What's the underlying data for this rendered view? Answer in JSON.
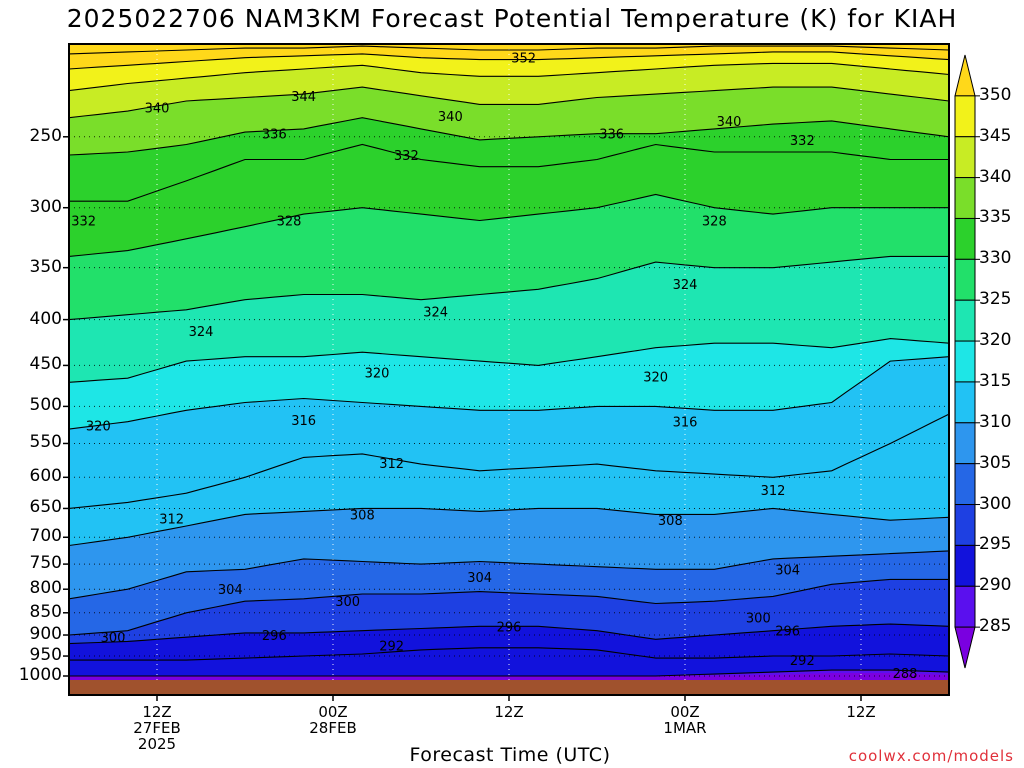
{
  "title": "2025022706 NAM3KM Forecast Potential Temperature (K) for KIAH",
  "credit": "coolwx.com/models",
  "chart_data": {
    "type": "heatmap",
    "subtype": "time-height cross-section, filled contours with contour lines",
    "title": "2025022706 NAM3KM Forecast Potential Temperature (K) for KIAH",
    "xlabel": "Forecast Time (UTC)",
    "ylabel": "",
    "y_scale": "log (pressure, hPa)",
    "ylim": [
      1000,
      200
    ],
    "x_start_hours": 0,
    "x_end_hours": 60,
    "x_ticks": [
      {
        "hour": 6,
        "lines": [
          "12Z",
          "27FEB",
          "2025"
        ]
      },
      {
        "hour": 18,
        "lines": [
          "00Z",
          "28FEB"
        ]
      },
      {
        "hour": 30,
        "lines": [
          "12Z"
        ]
      },
      {
        "hour": 42,
        "lines": [
          "00Z",
          "1MAR"
        ]
      },
      {
        "hour": 54,
        "lines": [
          "12Z"
        ]
      }
    ],
    "y_ticks": [
      250,
      300,
      350,
      400,
      450,
      500,
      550,
      600,
      650,
      700,
      750,
      800,
      850,
      900,
      950,
      1000
    ],
    "grid": true,
    "colorbar": {
      "levels": [
        285,
        290,
        295,
        300,
        305,
        310,
        315,
        320,
        325,
        330,
        335,
        340,
        345,
        350
      ],
      "labels": [
        "350",
        "345",
        "340",
        "335",
        "330",
        "325",
        "320",
        "315",
        "310",
        "305",
        "300",
        "295",
        "290",
        "285"
      ],
      "colors": [
        "#7a00e0",
        "#5a10ee",
        "#1212dc",
        "#1e40e2",
        "#2567e6",
        "#2e96ee",
        "#22c2f4",
        "#1ee6e6",
        "#1ee6b2",
        "#22e06a",
        "#2cd12c",
        "#7ade2a",
        "#c8ec24",
        "#f2f21a",
        "#ffd81a"
      ]
    },
    "contour_levels": [
      288,
      292,
      296,
      300,
      304,
      308,
      312,
      316,
      320,
      324,
      328,
      332,
      336,
      340,
      344,
      348,
      352
    ],
    "x_hours": [
      0,
      4,
      8,
      12,
      16,
      20,
      24,
      28,
      32,
      36,
      40,
      44,
      48,
      52,
      56,
      60
    ],
    "series": [
      {
        "name": "288",
        "values": [
          1000,
          1000,
          1000,
          1000,
          1000,
          1000,
          1000,
          1000,
          1000,
          1000,
          1000,
          995,
          990,
          985,
          985,
          990
        ]
      },
      {
        "name": "292",
        "values": [
          960,
          960,
          960,
          955,
          950,
          945,
          935,
          930,
          930,
          935,
          955,
          955,
          950,
          950,
          945,
          950
        ]
      },
      {
        "name": "296",
        "values": [
          920,
          915,
          905,
          895,
          895,
          890,
          885,
          880,
          880,
          890,
          910,
          900,
          890,
          880,
          875,
          880
        ]
      },
      {
        "name": "300",
        "values": [
          900,
          890,
          850,
          825,
          820,
          810,
          810,
          805,
          810,
          815,
          830,
          825,
          815,
          790,
          780,
          780
        ]
      },
      {
        "name": "304",
        "values": [
          820,
          800,
          765,
          760,
          740,
          745,
          750,
          745,
          750,
          755,
          760,
          760,
          740,
          735,
          730,
          725
        ]
      },
      {
        "name": "308",
        "values": [
          715,
          700,
          680,
          660,
          655,
          650,
          650,
          655,
          650,
          650,
          660,
          660,
          650,
          660,
          670,
          665
        ]
      },
      {
        "name": "312",
        "values": [
          650,
          640,
          625,
          600,
          570,
          565,
          580,
          590,
          585,
          580,
          590,
          595,
          600,
          590,
          550,
          510
        ]
      },
      {
        "name": "316",
        "values": [
          530,
          520,
          505,
          495,
          490,
          495,
          500,
          505,
          505,
          500,
          500,
          505,
          505,
          495,
          445,
          440
        ]
      },
      {
        "name": "320",
        "values": [
          470,
          465,
          445,
          440,
          440,
          435,
          440,
          445,
          450,
          440,
          430,
          425,
          425,
          430,
          420,
          425
        ]
      },
      {
        "name": "324",
        "values": [
          400,
          395,
          390,
          380,
          375,
          375,
          380,
          375,
          370,
          360,
          345,
          350,
          350,
          345,
          340,
          340
        ]
      },
      {
        "name": "328",
        "values": [
          340,
          335,
          325,
          315,
          305,
          300,
          305,
          310,
          305,
          300,
          290,
          300,
          305,
          300,
          300,
          300
        ]
      },
      {
        "name": "332",
        "values": [
          295,
          295,
          280,
          265,
          265,
          255,
          265,
          270,
          270,
          265,
          255,
          260,
          260,
          260,
          265,
          265
        ]
      },
      {
        "name": "336",
        "values": [
          262,
          260,
          255,
          247,
          245,
          238,
          245,
          252,
          250,
          248,
          248,
          245,
          242,
          240,
          245,
          250
        ]
      },
      {
        "name": "340",
        "values": [
          238,
          234,
          228,
          226,
          224,
          220,
          225,
          230,
          230,
          226,
          224,
          222,
          220,
          220,
          224,
          228
        ]
      },
      {
        "name": "344",
        "values": [
          222,
          218,
          215,
          212,
          210,
          208,
          212,
          214,
          214,
          212,
          210,
          208,
          207,
          207,
          210,
          213
        ]
      },
      {
        "name": "348",
        "values": [
          210,
          208,
          206,
          204,
          203,
          202,
          204,
          205,
          205,
          204,
          203,
          202,
          201,
          201,
          203,
          205
        ]
      },
      {
        "name": "352",
        "values": [
          202,
          201,
          200,
          199,
          199,
          198,
          199,
          200,
          200,
          199,
          199,
          198,
          198,
          198,
          199,
          200
        ]
      }
    ],
    "contour_labels": [
      {
        "text": "340",
        "hour": 6,
        "p": 232
      },
      {
        "text": "344",
        "hour": 16,
        "p": 225
      },
      {
        "text": "340",
        "hour": 26,
        "p": 237
      },
      {
        "text": "352",
        "hour": 31,
        "p": 204
      },
      {
        "text": "340",
        "hour": 45,
        "p": 240
      },
      {
        "text": "336",
        "hour": 14,
        "p": 248
      },
      {
        "text": "336",
        "hour": 37,
        "p": 248
      },
      {
        "text": "332",
        "hour": 23,
        "p": 262
      },
      {
        "text": "332",
        "hour": 50,
        "p": 252
      },
      {
        "text": "332",
        "hour": 1,
        "p": 310
      },
      {
        "text": "328",
        "hour": 15,
        "p": 310
      },
      {
        "text": "328",
        "hour": 44,
        "p": 310
      },
      {
        "text": "324",
        "hour": 42,
        "p": 365
      },
      {
        "text": "324",
        "hour": 25,
        "p": 392
      },
      {
        "text": "324",
        "hour": 9,
        "p": 412
      },
      {
        "text": "320",
        "hour": 21,
        "p": 458
      },
      {
        "text": "320",
        "hour": 40,
        "p": 463
      },
      {
        "text": "320",
        "hour": 2,
        "p": 525
      },
      {
        "text": "316",
        "hour": 16,
        "p": 518
      },
      {
        "text": "316",
        "hour": 42,
        "p": 520
      },
      {
        "text": "312",
        "hour": 22,
        "p": 578
      },
      {
        "text": "312",
        "hour": 48,
        "p": 620
      },
      {
        "text": "312",
        "hour": 7,
        "p": 667
      },
      {
        "text": "308",
        "hour": 20,
        "p": 660
      },
      {
        "text": "308",
        "hour": 41,
        "p": 670
      },
      {
        "text": "304",
        "hour": 28,
        "p": 775
      },
      {
        "text": "304",
        "hour": 11,
        "p": 800
      },
      {
        "text": "304",
        "hour": 49,
        "p": 760
      },
      {
        "text": "300",
        "hour": 19,
        "p": 825
      },
      {
        "text": "300",
        "hour": 47,
        "p": 860
      },
      {
        "text": "300",
        "hour": 3,
        "p": 905
      },
      {
        "text": "296",
        "hour": 14,
        "p": 900
      },
      {
        "text": "296",
        "hour": 30,
        "p": 880
      },
      {
        "text": "296",
        "hour": 49,
        "p": 890
      },
      {
        "text": "292",
        "hour": 22,
        "p": 925
      },
      {
        "text": "292",
        "hour": 50,
        "p": 960
      },
      {
        "text": "288",
        "hour": 57,
        "p": 992
      }
    ]
  }
}
